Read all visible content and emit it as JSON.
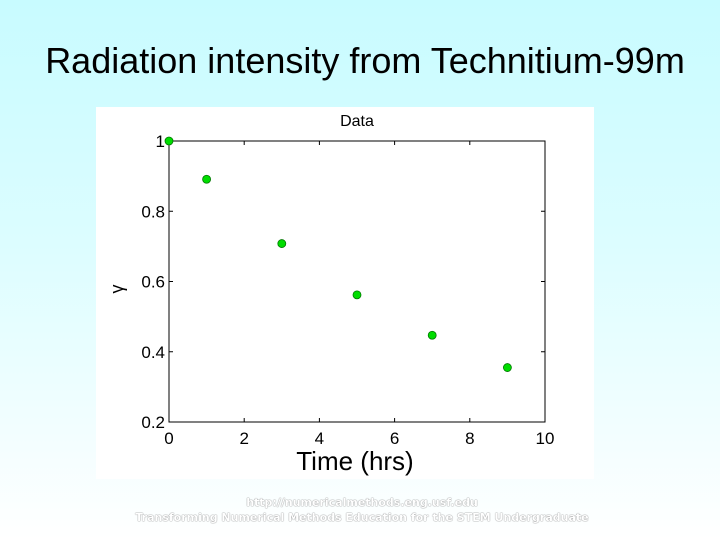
{
  "slide": {
    "title": "Radiation intensity from Technitium-99m",
    "footer_url": "http://numericalmethods.eng.usf.edu",
    "footer_tagline": "Transforming Numerical Methods Education for the STEM Undergraduate"
  },
  "chart_data": {
    "type": "scatter",
    "title": "Data",
    "xlabel": "Time (hrs)",
    "ylabel": "γ",
    "xlim": [
      0,
      10
    ],
    "ylim": [
      0.2,
      1
    ],
    "xticks": [
      0,
      2,
      4,
      6,
      8,
      10
    ],
    "yticks": [
      0.2,
      0.4,
      0.6,
      0.8,
      1
    ],
    "ytick_labels": [
      "0.2",
      "0.4",
      "0.6",
      "0.8",
      "1"
    ],
    "grid": false,
    "marker_color": "#00dd00",
    "series": [
      {
        "x": [
          0,
          1,
          3,
          5,
          7,
          9
        ],
        "y": [
          1.0,
          0.891,
          0.708,
          0.562,
          0.447,
          0.355
        ]
      }
    ]
  }
}
